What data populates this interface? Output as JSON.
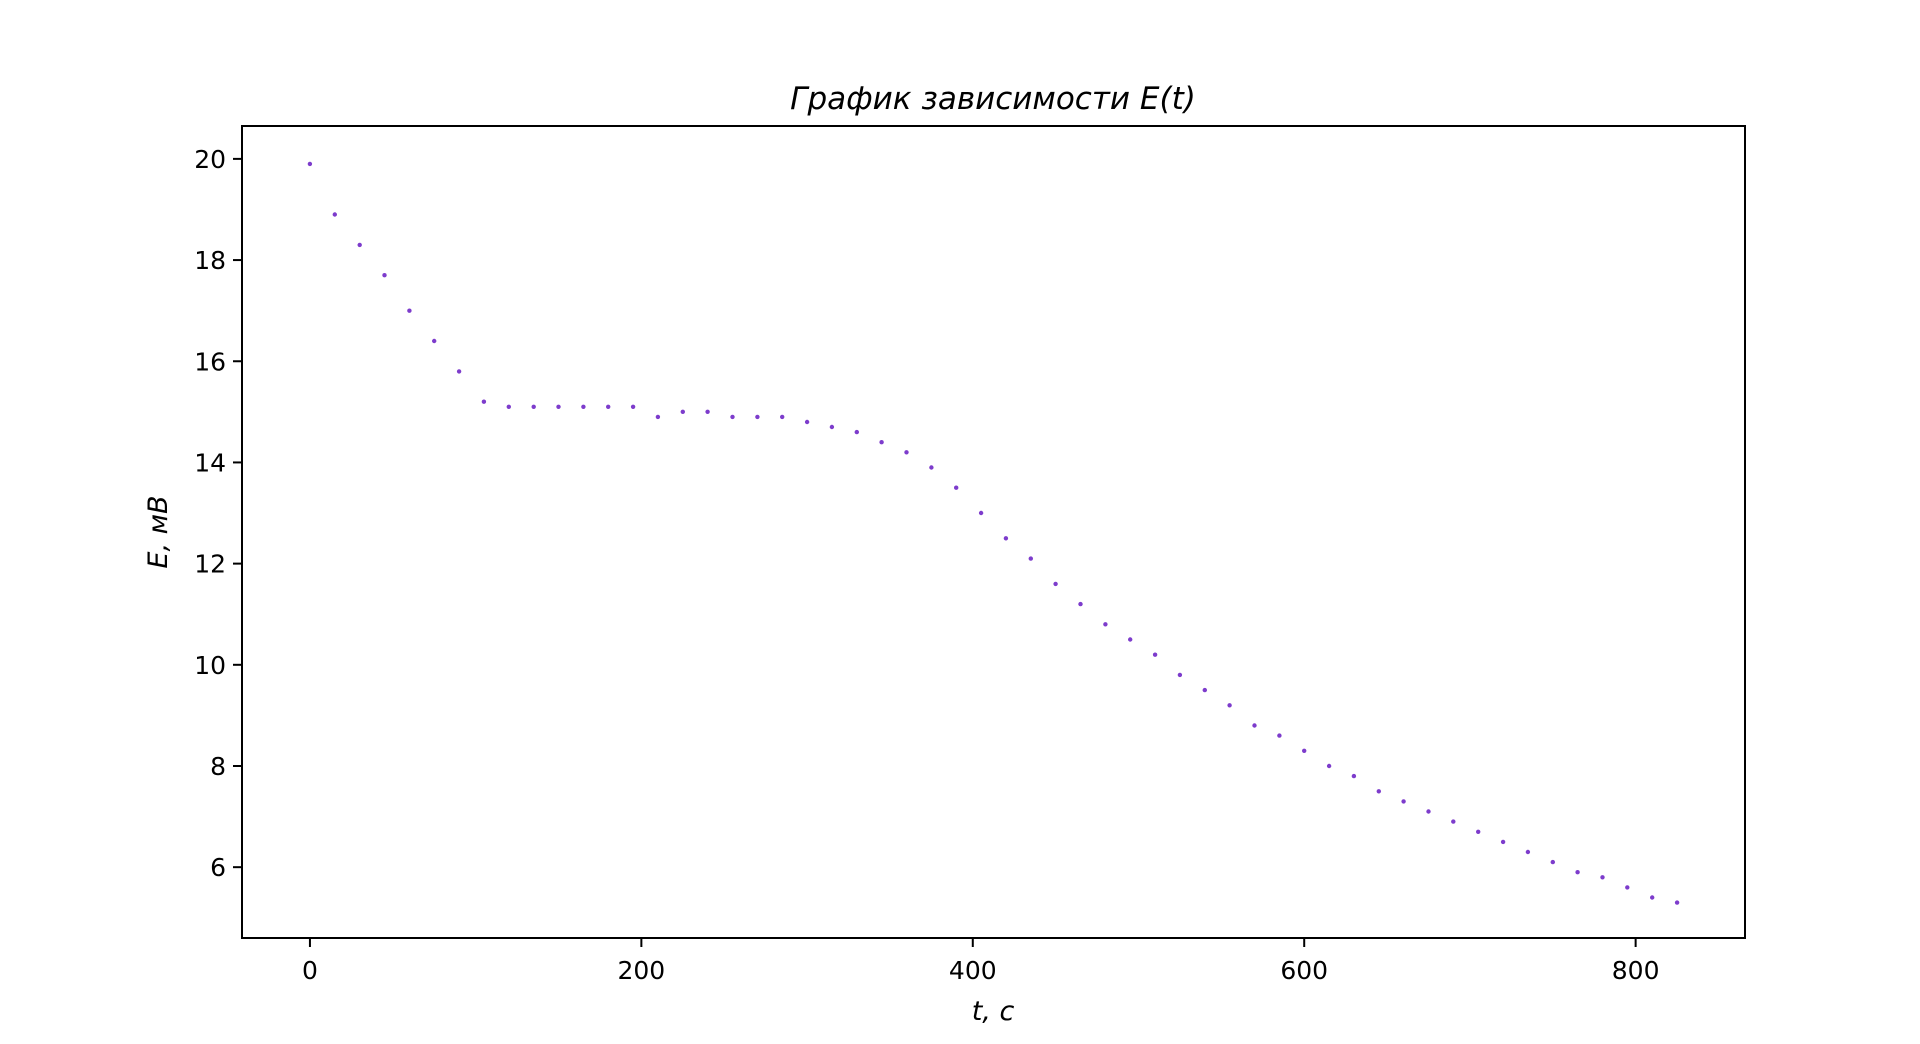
{
  "chart_data": {
    "type": "scatter",
    "title": "График зависимости E(t)",
    "xlabel": "t, c",
    "ylabel": "E, мВ",
    "xlim": [
      -41,
      866
    ],
    "ylim": [
      4.6,
      20.65
    ],
    "xticks": [
      0,
      200,
      400,
      600,
      800
    ],
    "yticks": [
      6,
      8,
      10,
      12,
      14,
      16,
      18,
      20
    ],
    "grid": false,
    "marker_color": "#7d3ccc",
    "x": [
      0,
      15,
      30,
      45,
      60,
      75,
      90,
      105,
      120,
      135,
      150,
      165,
      180,
      195,
      210,
      225,
      240,
      255,
      270,
      285,
      300,
      315,
      330,
      345,
      360,
      375,
      390,
      405,
      420,
      435,
      450,
      465,
      480,
      495,
      510,
      525,
      540,
      555,
      570,
      585,
      600,
      615,
      630,
      645,
      660,
      675,
      690,
      705,
      720,
      735,
      750,
      765,
      780,
      795,
      810,
      825
    ],
    "y": [
      19.9,
      18.9,
      18.3,
      17.7,
      17.0,
      16.4,
      15.8,
      15.2,
      15.1,
      15.1,
      15.1,
      15.1,
      15.1,
      15.1,
      14.9,
      15.0,
      15.0,
      14.9,
      14.9,
      14.9,
      14.8,
      14.7,
      14.6,
      14.4,
      14.2,
      13.9,
      13.5,
      13.0,
      12.5,
      12.1,
      11.6,
      11.2,
      10.8,
      10.5,
      10.2,
      9.8,
      9.5,
      9.2,
      8.8,
      8.6,
      8.3,
      8.0,
      7.8,
      7.5,
      7.3,
      7.1,
      6.9,
      6.7,
      6.5,
      6.3,
      6.1,
      5.9,
      5.8,
      5.6,
      5.4,
      5.3
    ]
  }
}
